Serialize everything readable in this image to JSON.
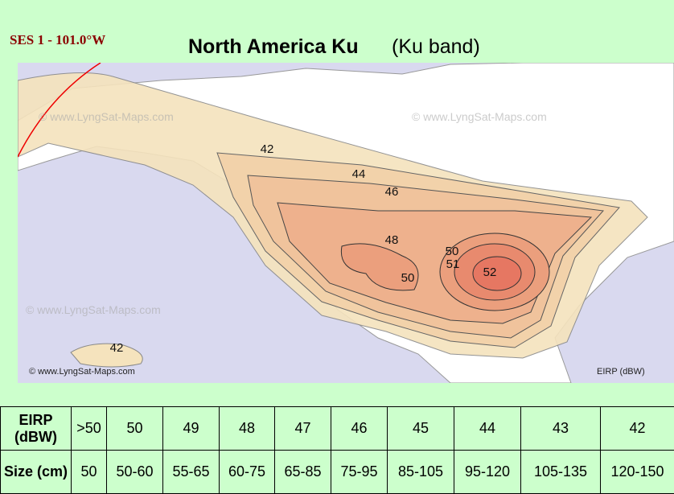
{
  "header": {
    "satellite": "SES 1 - 101.0°W",
    "title": "North America Ku",
    "subtitle": "(Ku band)"
  },
  "map": {
    "contour_labels": [
      "42",
      "44",
      "46",
      "48",
      "50",
      "51",
      "52",
      "50",
      "42"
    ],
    "copyright": "© www.LyngSat-Maps.com",
    "legend": "EIRP (dBW)"
  },
  "table": {
    "rows": [
      [
        "EIRP (dBW)",
        ">50",
        "50",
        "49",
        "48",
        "47",
        "46",
        "45",
        "44",
        "43",
        "42"
      ],
      [
        "Size (cm)",
        "50",
        "50-60",
        "55-65",
        "60-75",
        "65-85",
        "75-95",
        "85-105",
        "95-120",
        "105-135",
        "120-150"
      ]
    ]
  }
}
